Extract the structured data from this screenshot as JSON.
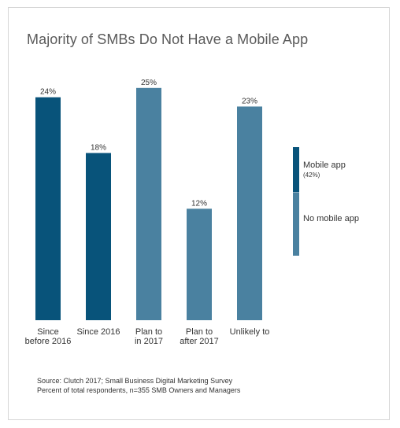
{
  "chart_data": {
    "type": "bar",
    "title": "Majority of SMBs Do Not Have a Mobile App",
    "categories": [
      [
        "Since",
        "before 2016"
      ],
      [
        "Since 2016"
      ],
      [
        "Plan to",
        "in 2017"
      ],
      [
        "Plan to",
        "after 2017"
      ],
      [
        "Unlikely to"
      ]
    ],
    "values": [
      24,
      18,
      25,
      12,
      23
    ],
    "value_labels": [
      "24%",
      "18%",
      "25%",
      "12%",
      "23%"
    ],
    "groups": [
      "mobile",
      "mobile",
      "none",
      "none",
      "none"
    ],
    "ylim": [
      0,
      26
    ],
    "grid": false,
    "legend": {
      "placement": "right",
      "items": [
        {
          "key": "mobile",
          "label": "Mobile app",
          "sublabel": "(42%)",
          "share": 42,
          "color": "#08537a"
        },
        {
          "key": "none",
          "label": "No mobile app",
          "sublabel": "",
          "share": 58,
          "color": "#4a81a0"
        }
      ]
    }
  },
  "source": {
    "line1": "Source: Clutch 2017; Small Business Digital Marketing Survey",
    "line2": "Percent of total respondents, n=355 SMB Owners and Managers"
  }
}
